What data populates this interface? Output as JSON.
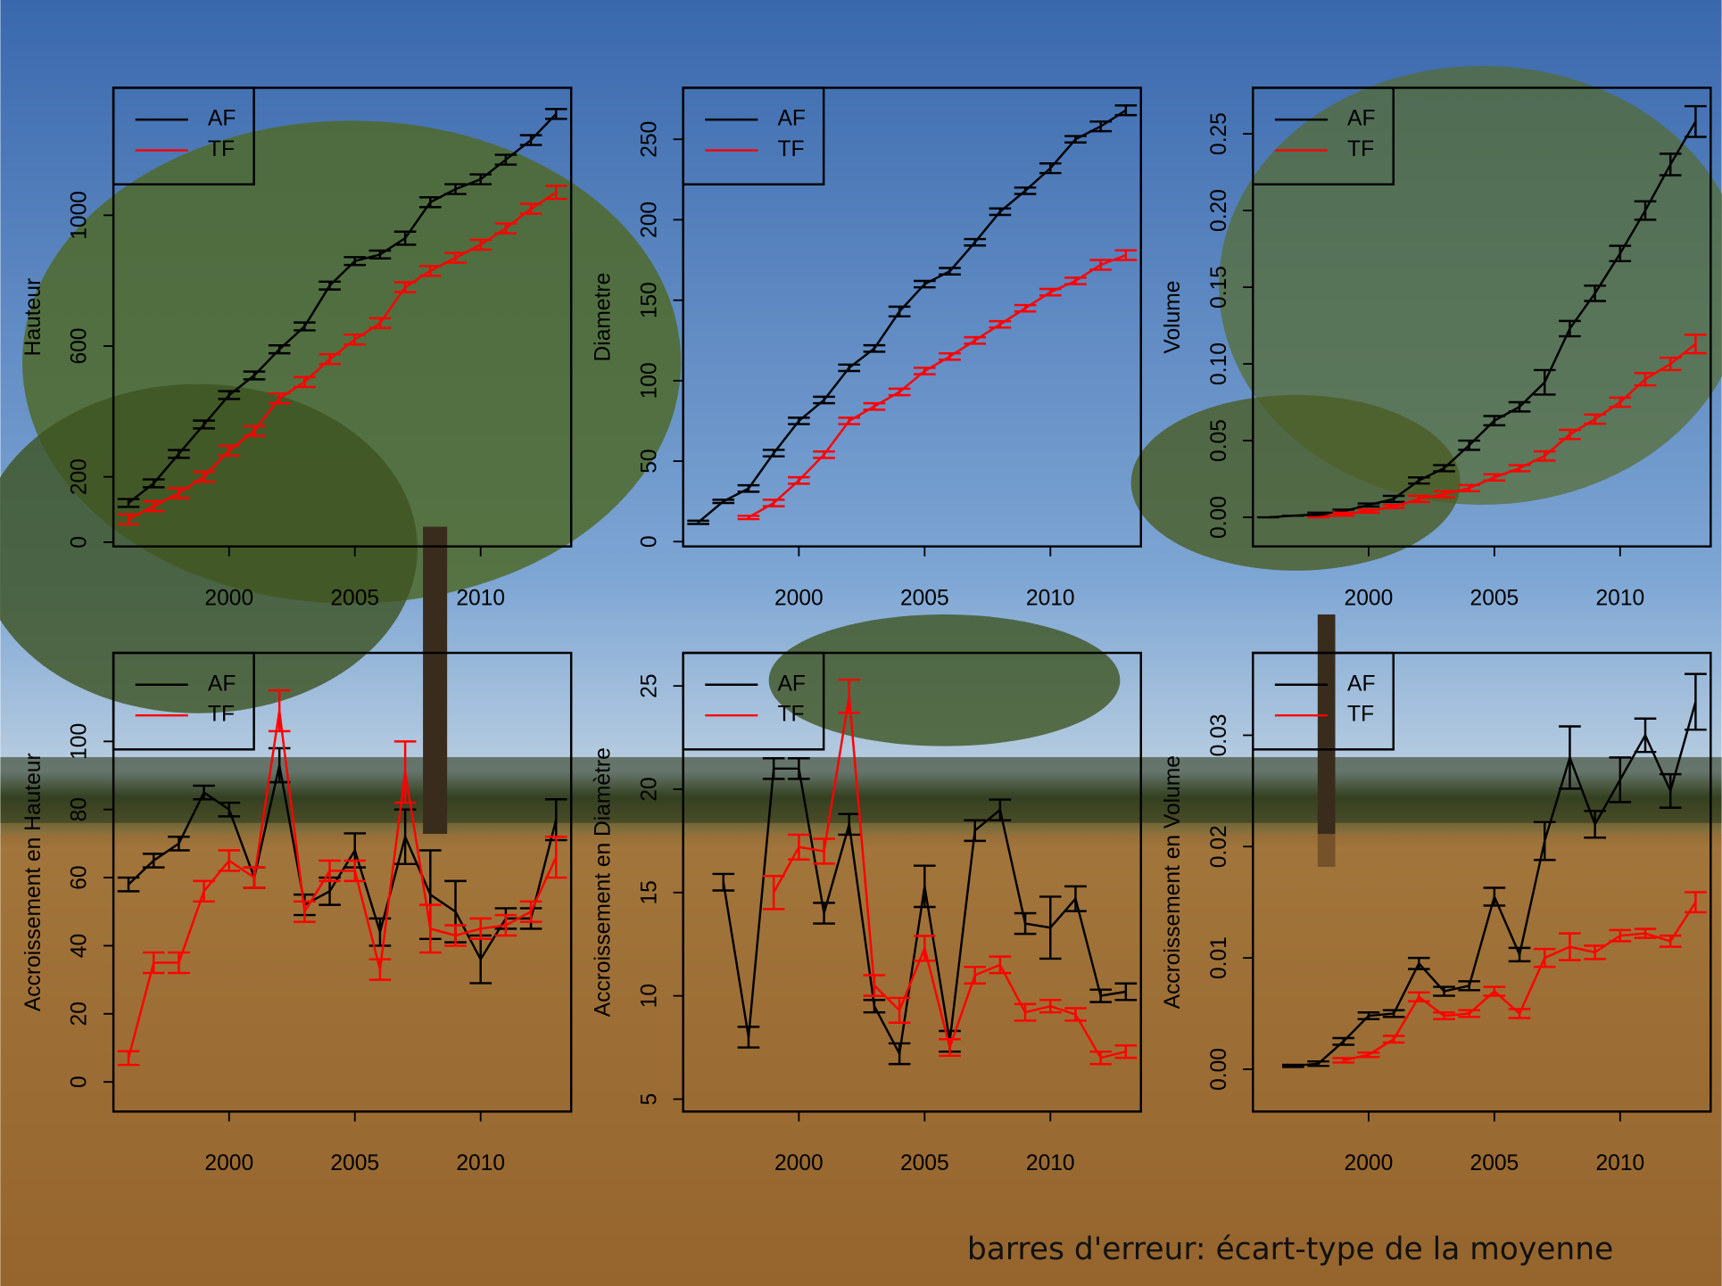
{
  "chart_data": [
    {
      "type": "line",
      "ylabel": "Hauteur",
      "x": [
        1996,
        1997,
        1998,
        1999,
        2000,
        2001,
        2002,
        2003,
        2004,
        2005,
        2006,
        2007,
        2008,
        2009,
        2010,
        2011,
        2012,
        2013
      ],
      "xlim": [
        1995.4,
        2013.6
      ],
      "xticks": [
        2000,
        2005,
        2010
      ],
      "ylim": [
        -13,
        1390
      ],
      "yticks": [
        0,
        200,
        600,
        1000
      ],
      "legend": "top-left",
      "series": [
        {
          "name": "AF",
          "color": "#000000",
          "values": [
            120,
            180,
            270,
            360,
            450,
            510,
            590,
            660,
            785,
            860,
            880,
            930,
            1040,
            1080,
            1110,
            1170,
            1230,
            1310
          ],
          "errors": [
            12,
            12,
            12,
            12,
            12,
            12,
            12,
            12,
            12,
            12,
            12,
            20,
            15,
            15,
            15,
            15,
            15,
            15
          ]
        },
        {
          "name": "TF",
          "color": "#ff0000",
          "values": [
            70,
            110,
            150,
            200,
            280,
            340,
            440,
            490,
            560,
            620,
            670,
            780,
            830,
            870,
            910,
            960,
            1020,
            1070
          ],
          "errors": [
            15,
            15,
            15,
            15,
            15,
            15,
            15,
            15,
            15,
            15,
            15,
            15,
            15,
            15,
            15,
            15,
            15,
            20
          ]
        }
      ]
    },
    {
      "type": "line",
      "ylabel": "Diametre",
      "x": [
        1996,
        1997,
        1998,
        1999,
        2000,
        2001,
        2002,
        2003,
        2004,
        2005,
        2006,
        2007,
        2008,
        2009,
        2010,
        2011,
        2012,
        2013
      ],
      "xlim": [
        1995.4,
        2013.6
      ],
      "xticks": [
        2000,
        2005,
        2010
      ],
      "ylim": [
        -3,
        282
      ],
      "yticks": [
        0,
        50,
        100,
        150,
        200,
        250
      ],
      "legend": "top-left",
      "series": [
        {
          "name": "AF",
          "color": "#000000",
          "values": [
            12,
            25,
            33,
            55,
            75,
            88,
            108,
            120,
            143,
            160,
            168,
            186,
            205,
            218,
            232,
            250,
            258,
            268
          ],
          "errors": [
            1,
            1,
            2,
            2,
            2,
            2,
            2,
            2,
            3,
            2,
            2,
            2,
            2,
            2,
            3,
            2,
            3,
            3
          ]
        },
        {
          "name": "TF",
          "color": "#ff0000",
          "values": [
            null,
            null,
            15,
            24,
            38,
            54,
            75,
            84,
            93,
            106,
            115,
            125,
            135,
            145,
            155,
            162,
            172,
            178
          ],
          "errors": [
            null,
            null,
            1,
            2,
            2,
            2,
            2,
            2,
            2,
            2,
            2,
            2,
            2,
            2,
            2,
            2,
            3,
            3
          ]
        }
      ]
    },
    {
      "type": "line",
      "ylabel": "Volume",
      "x": [
        1996,
        1997,
        1998,
        1999,
        2000,
        2001,
        2002,
        2003,
        2004,
        2005,
        2006,
        2007,
        2008,
        2009,
        2010,
        2011,
        2012,
        2013
      ],
      "xlim": [
        1995.4,
        2013.6
      ],
      "xticks": [
        2000,
        2005,
        2010
      ],
      "ylim": [
        -0.019,
        0.28
      ],
      "yticks": [
        {
          "value": 0,
          "label": "0.00"
        },
        {
          "value": 0.05,
          "label": "0.05"
        },
        {
          "value": 0.1,
          "label": "0.10"
        },
        {
          "value": 0.15,
          "label": "0.15"
        },
        {
          "value": 0.2,
          "label": "0.20"
        },
        {
          "value": 0.25,
          "label": "0.25"
        }
      ],
      "legend": "top-left",
      "series": [
        {
          "name": "AF",
          "color": "#000000",
          "values": [
            0,
            0.001,
            0.002,
            0.004,
            0.008,
            0.012,
            0.024,
            0.032,
            0.047,
            0.063,
            0.072,
            0.088,
            0.123,
            0.146,
            0.172,
            0.2,
            0.23,
            0.258
          ],
          "errors": [
            0,
            0,
            0.001,
            0.001,
            0.001,
            0.002,
            0.002,
            0.002,
            0.003,
            0.003,
            0.003,
            0.008,
            0.005,
            0.005,
            0.005,
            0.006,
            0.007,
            0.01
          ]
        },
        {
          "name": "TF",
          "color": "#ff0000",
          "values": [
            null,
            null,
            0,
            0.002,
            0.004,
            0.007,
            0.012,
            0.015,
            0.019,
            0.026,
            0.032,
            0.04,
            0.054,
            0.064,
            0.075,
            0.09,
            0.1,
            0.113
          ],
          "errors": [
            null,
            null,
            0,
            0.001,
            0.001,
            0.001,
            0.002,
            0.002,
            0.002,
            0.002,
            0.002,
            0.003,
            0.003,
            0.003,
            0.003,
            0.004,
            0.004,
            0.006
          ]
        }
      ]
    },
    {
      "type": "line",
      "ylabel": "Accroissement en Hauteur",
      "x": [
        1996,
        1997,
        1998,
        1999,
        2000,
        2001,
        2002,
        2003,
        2004,
        2005,
        2006,
        2007,
        2008,
        2009,
        2010,
        2011,
        2012,
        2013
      ],
      "xlim": [
        1995.4,
        2013.6
      ],
      "xticks": [
        2000,
        2005,
        2010
      ],
      "ylim": [
        -8.7,
        126
      ],
      "yticks": [
        0,
        20,
        40,
        60,
        80,
        100
      ],
      "legend": "top-left",
      "series": [
        {
          "name": "AF",
          "color": "#000000",
          "values": [
            58,
            65,
            70,
            85,
            80,
            60,
            93,
            52,
            56,
            68,
            44,
            72,
            55,
            50,
            36,
            48,
            48,
            77
          ],
          "errors": [
            2,
            2,
            2,
            2,
            2,
            3,
            5,
            3,
            4,
            5,
            4,
            8,
            13,
            9,
            7,
            3,
            3,
            6
          ]
        },
        {
          "name": "TF",
          "color": "#ff0000",
          "values": [
            7,
            35,
            35,
            56,
            65,
            60,
            109,
            50,
            62,
            62,
            33,
            91,
            45,
            43,
            45,
            46,
            50,
            66
          ],
          "errors": [
            2,
            3,
            3,
            3,
            3,
            3,
            6,
            3,
            3,
            3,
            3,
            9,
            7,
            3,
            3,
            3,
            3,
            6
          ]
        }
      ]
    },
    {
      "type": "line",
      "ylabel": "Accroissement en Diamètre",
      "x": [
        1996,
        1997,
        1998,
        1999,
        2000,
        2001,
        2002,
        2003,
        2004,
        2005,
        2006,
        2007,
        2008,
        2009,
        2010,
        2011,
        2012,
        2013
      ],
      "xlim": [
        1995.4,
        2013.6
      ],
      "xticks": [
        2000,
        2005,
        2010
      ],
      "ylim": [
        4.4,
        26.6
      ],
      "yticks": [
        5,
        10,
        15,
        20,
        25
      ],
      "legend": "top-left",
      "series": [
        {
          "name": "AF",
          "color": "#000000",
          "values": [
            null,
            15.5,
            8,
            21,
            21,
            14,
            18.3,
            9.5,
            7.2,
            15.3,
            7.8,
            18,
            19,
            13.5,
            13.3,
            14.7,
            10,
            10.2
          ],
          "errors": [
            null,
            0.4,
            0.5,
            0.5,
            0.5,
            0.5,
            0.5,
            0.3,
            0.5,
            1,
            0.5,
            0.5,
            0.5,
            0.5,
            1.5,
            0.6,
            0.3,
            0.4
          ]
        },
        {
          "name": "TF",
          "color": "#ff0000",
          "values": [
            null,
            null,
            null,
            15,
            17.2,
            17,
            24.5,
            10.5,
            9.3,
            12.3,
            7.5,
            11,
            11.5,
            9.2,
            9.5,
            9.1,
            7,
            7.3
          ],
          "errors": [
            null,
            null,
            null,
            0.8,
            0.6,
            0.6,
            0.8,
            0.5,
            0.6,
            0.6,
            0.4,
            0.4,
            0.4,
            0.4,
            0.3,
            0.3,
            0.3,
            0.3
          ]
        }
      ]
    },
    {
      "type": "line",
      "ylabel": "Accroissement en Volume",
      "x": [
        1996,
        1997,
        1998,
        1999,
        2000,
        2001,
        2002,
        2003,
        2004,
        2005,
        2006,
        2007,
        2008,
        2009,
        2010,
        2011,
        2012,
        2013
      ],
      "xlim": [
        1995.4,
        2013.6
      ],
      "xticks": [
        2000,
        2005,
        2010
      ],
      "ylim": [
        -0.0038,
        0.0374
      ],
      "yticks": [
        {
          "value": 0,
          "label": "0.00"
        },
        {
          "value": 0.01,
          "label": "0.01"
        },
        {
          "value": 0.02,
          "label": "0.02"
        },
        {
          "value": 0.03,
          "label": "0.03"
        }
      ],
      "legend": "top-left",
      "series": [
        {
          "name": "AF",
          "color": "#000000",
          "values": [
            null,
            0.0003,
            0.0005,
            0.0025,
            0.0048,
            0.005,
            0.0095,
            0.007,
            0.0075,
            0.0155,
            0.0103,
            0.0205,
            0.028,
            0.022,
            0.026,
            0.03,
            0.025,
            0.033
          ],
          "errors": [
            null,
            0.0001,
            0.0002,
            0.0003,
            0.0003,
            0.0003,
            0.0005,
            0.0004,
            0.0004,
            0.0008,
            0.0006,
            0.0017,
            0.0028,
            0.0012,
            0.002,
            0.0015,
            0.0015,
            0.0025
          ]
        },
        {
          "name": "TF",
          "color": "#ff0000",
          "values": [
            null,
            null,
            null,
            0.0008,
            0.0013,
            0.0027,
            0.0065,
            0.0048,
            0.005,
            0.007,
            0.005,
            0.01,
            0.011,
            0.0105,
            0.012,
            0.0122,
            0.0115,
            0.015
          ],
          "errors": [
            null,
            null,
            null,
            0.0002,
            0.0002,
            0.0003,
            0.0004,
            0.0003,
            0.0003,
            0.0004,
            0.0004,
            0.0008,
            0.0012,
            0.0006,
            0.0005,
            0.0004,
            0.0005,
            0.0009
          ]
        }
      ]
    }
  ],
  "note": "barres d'erreur: écart-type de la moyenne"
}
